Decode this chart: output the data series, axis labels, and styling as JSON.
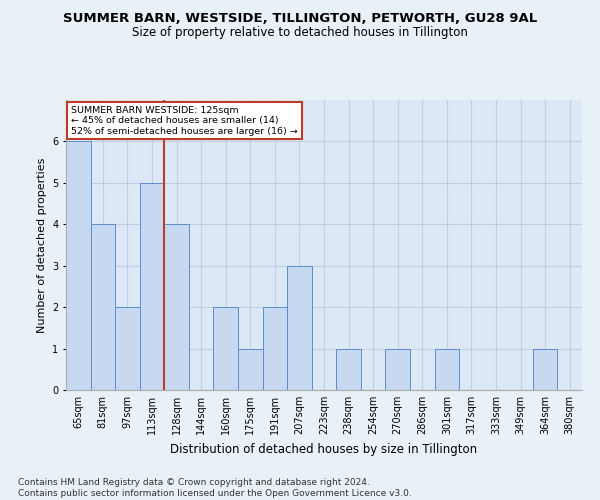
{
  "title": "SUMMER BARN, WESTSIDE, TILLINGTON, PETWORTH, GU28 9AL",
  "subtitle": "Size of property relative to detached houses in Tillington",
  "xlabel": "Distribution of detached houses by size in Tillington",
  "ylabel": "Number of detached properties",
  "categories": [
    "65sqm",
    "81sqm",
    "97sqm",
    "113sqm",
    "128sqm",
    "144sqm",
    "160sqm",
    "175sqm",
    "191sqm",
    "207sqm",
    "223sqm",
    "238sqm",
    "254sqm",
    "270sqm",
    "286sqm",
    "301sqm",
    "317sqm",
    "333sqm",
    "349sqm",
    "364sqm",
    "380sqm"
  ],
  "values": [
    6,
    4,
    2,
    5,
    4,
    0,
    2,
    1,
    2,
    3,
    0,
    1,
    0,
    1,
    0,
    1,
    0,
    0,
    0,
    1,
    0
  ],
  "bar_color": "#c6d9f0",
  "bar_edge_color": "#5b8fc9",
  "vline_index": 3.5,
  "vline_color": "#c0392b",
  "annotation_text": "SUMMER BARN WESTSIDE: 125sqm\n← 45% of detached houses are smaller (14)\n52% of semi-detached houses are larger (16) →",
  "annotation_box_color": "#ffffff",
  "annotation_box_edge": "#c0392b",
  "background_color": "#e8f0f8",
  "plot_bg_color": "#dce8f5",
  "grid_color": "#c0cfe0",
  "ylim": [
    0,
    7
  ],
  "yticks": [
    0,
    1,
    2,
    3,
    4,
    5,
    6
  ],
  "footer": "Contains HM Land Registry data © Crown copyright and database right 2024.\nContains public sector information licensed under the Open Government Licence v3.0.",
  "title_fontsize": 9.5,
  "subtitle_fontsize": 8.5,
  "xlabel_fontsize": 8.5,
  "ylabel_fontsize": 8,
  "tick_fontsize": 7,
  "footer_fontsize": 6.5
}
